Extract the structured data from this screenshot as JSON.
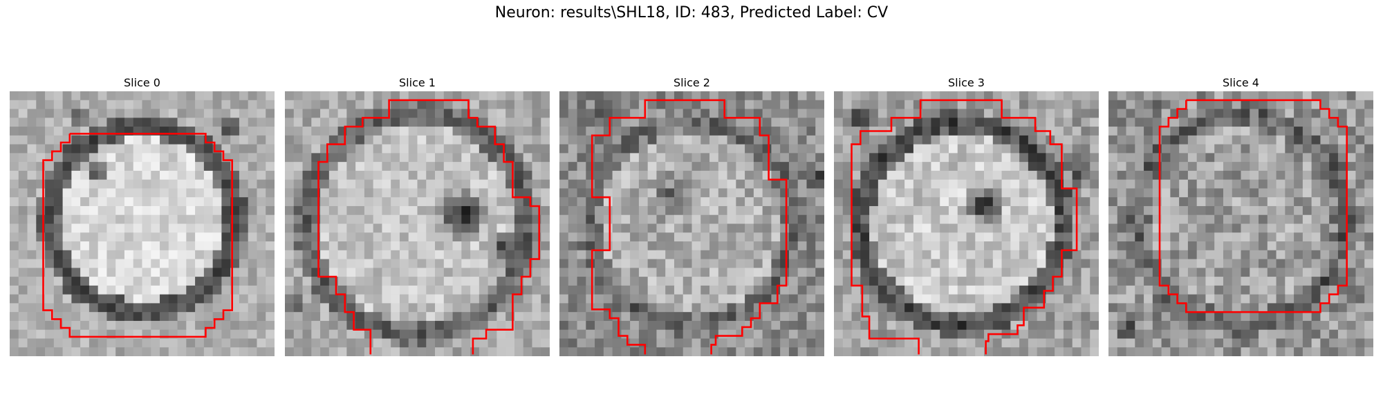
{
  "figure": {
    "title": "Neuron: results\\SHL18, ID: 483, Predicted Label: CV"
  },
  "colors": {
    "contour": "#ff0000",
    "background": "#ffffff"
  },
  "panels": [
    {
      "title": "Slice 0"
    },
    {
      "title": "Slice 1"
    },
    {
      "title": "Slice 2"
    },
    {
      "title": "Slice 3"
    },
    {
      "title": "Slice 4"
    }
  ]
}
